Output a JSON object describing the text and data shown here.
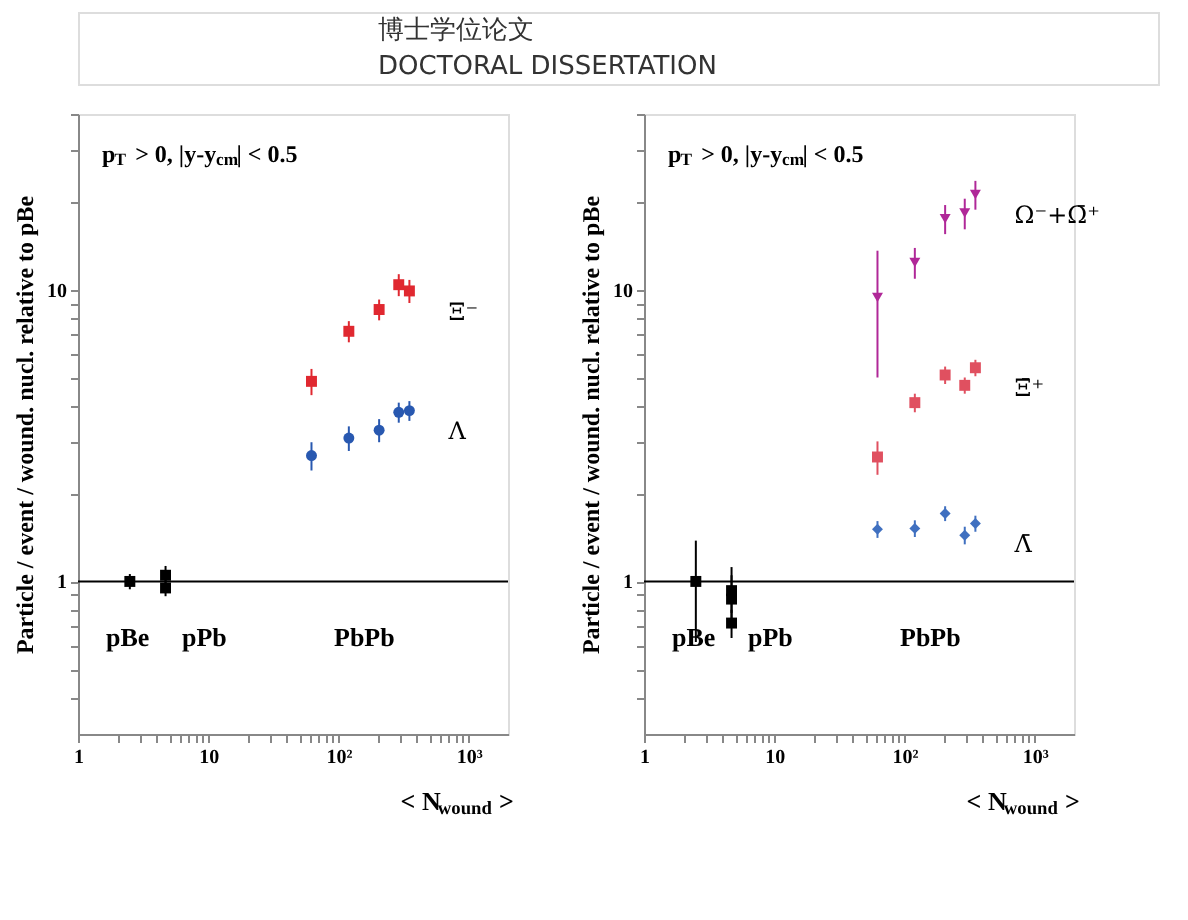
{
  "chart_data": [
    {
      "type": "other",
      "annotations": [
        "博士学位论文",
        "DOCTORAL DISSERTATION"
      ]
    },
    {
      "type": "scatter",
      "ylabel": "Particle / event / wound. nucl. relative to pBe",
      "xlabel": "< N$_{wound}$ >",
      "log": "xy",
      "grid": false,
      "xlim": [
        1,
        2000
      ],
      "ylim": [
        0.3,
        40
      ],
      "xticks": [
        1,
        {
          "value": 2,
          "label": null
        },
        {
          "value": 3,
          "label": null
        },
        {
          "value": 4,
          "label": null
        },
        {
          "value": 5,
          "label": null
        },
        {
          "value": 6,
          "label": null
        },
        {
          "value": 7,
          "label": null
        },
        {
          "value": 8,
          "label": null
        },
        {
          "value": 9,
          "label": null
        },
        10,
        {
          "value": 20,
          "label": null
        },
        {
          "value": 30,
          "label": null
        },
        {
          "value": 40,
          "label": null
        },
        {
          "value": 50,
          "label": null
        },
        {
          "value": 60,
          "label": null
        },
        {
          "value": 70,
          "label": null
        },
        {
          "value": 80,
          "label": null
        },
        {
          "value": 90,
          "label": null
        },
        {
          "value": 100,
          "label": "10²"
        },
        {
          "value": 200,
          "label": null
        },
        {
          "value": 300,
          "label": null
        },
        {
          "value": 400,
          "label": null
        },
        {
          "value": 500,
          "label": null
        },
        {
          "value": 600,
          "label": null
        },
        {
          "value": 700,
          "label": null
        },
        {
          "value": 800,
          "label": null
        },
        {
          "value": 900,
          "label": null
        },
        {
          "value": 1000,
          "label": "10³"
        }
      ],
      "yticks": [
        {
          "value": 0.4,
          "label": null
        },
        {
          "value": 0.5,
          "label": null
        },
        {
          "value": 0.6,
          "label": null
        },
        {
          "value": 0.7,
          "label": null
        },
        {
          "value": 0.8,
          "label": null
        },
        {
          "value": 0.9,
          "label": null
        },
        1,
        {
          "value": 2,
          "label": null
        },
        {
          "value": 3,
          "label": null
        },
        {
          "value": 4,
          "label": null
        },
        {
          "value": 5,
          "label": null
        },
        {
          "value": 6,
          "label": null
        },
        {
          "value": 7,
          "label": null
        },
        {
          "value": 8,
          "label": null
        },
        {
          "value": 9,
          "label": null
        },
        10,
        {
          "value": 20,
          "label": null
        },
        {
          "value": 30,
          "label": null
        },
        {
          "value": 40,
          "label": null
        }
      ],
      "ref_lines": [
        {
          "axis": "y",
          "value": 1,
          "color": "#000000"
        }
      ],
      "annotations": [
        "p$_{T}$ > 0,  |y-y$_{cm}$| < 0.5",
        "pBe",
        "pPb",
        "PbPb"
      ],
      "series": [
        {
          "name": "Ξ⁻",
          "color": "#e02830",
          "marker": "square",
          "x": [
            62,
            120,
            205,
            290,
            350
          ],
          "values": [
            4.85,
            7.2,
            8.55,
            10.4,
            9.9
          ],
          "errors": [
            0.5,
            0.6,
            0.7,
            0.9,
            0.9
          ]
        },
        {
          "name": "Λ",
          "color": "#2858b0",
          "marker": "circle",
          "x": [
            62,
            120,
            205,
            290,
            350
          ],
          "values": [
            2.7,
            3.1,
            3.3,
            3.8,
            3.85
          ],
          "errors": [
            0.3,
            0.3,
            0.3,
            0.3,
            0.3
          ]
        },
        {
          "color": "#000000",
          "marker": "square",
          "x": [
            2.5,
            4.7,
            4.7
          ],
          "values": [
            1.0,
            1.05,
            0.95
          ],
          "errors": [
            0.06,
            0.08,
            0.06
          ]
        }
      ]
    },
    {
      "type": "scatter",
      "ylabel": "Particle / event / wound. nucl. relative to pBe",
      "xlabel": "< N$_{wound}$ >",
      "log": "xy",
      "grid": false,
      "xlim": [
        1,
        2000
      ],
      "ylim": [
        0.3,
        40
      ],
      "xticks": [
        1,
        {
          "value": 2,
          "label": null
        },
        {
          "value": 3,
          "label": null
        },
        {
          "value": 4,
          "label": null
        },
        {
          "value": 5,
          "label": null
        },
        {
          "value": 6,
          "label": null
        },
        {
          "value": 7,
          "label": null
        },
        {
          "value": 8,
          "label": null
        },
        {
          "value": 9,
          "label": null
        },
        10,
        {
          "value": 20,
          "label": null
        },
        {
          "value": 30,
          "label": null
        },
        {
          "value": 40,
          "label": null
        },
        {
          "value": 50,
          "label": null
        },
        {
          "value": 60,
          "label": null
        },
        {
          "value": 70,
          "label": null
        },
        {
          "value": 80,
          "label": null
        },
        {
          "value": 90,
          "label": null
        },
        {
          "value": 100,
          "label": "10²"
        },
        {
          "value": 200,
          "label": null
        },
        {
          "value": 300,
          "label": null
        },
        {
          "value": 400,
          "label": null
        },
        {
          "value": 500,
          "label": null
        },
        {
          "value": 600,
          "label": null
        },
        {
          "value": 700,
          "label": null
        },
        {
          "value": 800,
          "label": null
        },
        {
          "value": 900,
          "label": null
        },
        {
          "value": 1000,
          "label": "10³"
        }
      ],
      "yticks": [
        {
          "value": 0.4,
          "label": null
        },
        {
          "value": 0.5,
          "label": null
        },
        {
          "value": 0.6,
          "label": null
        },
        {
          "value": 0.7,
          "label": null
        },
        {
          "value": 0.8,
          "label": null
        },
        {
          "value": 0.9,
          "label": null
        },
        1,
        {
          "value": 2,
          "label": null
        },
        {
          "value": 3,
          "label": null
        },
        {
          "value": 4,
          "label": null
        },
        {
          "value": 5,
          "label": null
        },
        {
          "value": 6,
          "label": null
        },
        {
          "value": 7,
          "label": null
        },
        {
          "value": 8,
          "label": null
        },
        {
          "value": 9,
          "label": null
        },
        10,
        {
          "value": 20,
          "label": null
        },
        {
          "value": 30,
          "label": null
        },
        {
          "value": 40,
          "label": null
        }
      ],
      "ref_lines": [
        {
          "axis": "y",
          "value": 1,
          "color": "#000000"
        }
      ],
      "annotations": [
        "p$_{T}$ > 0,  |y-y$_{cm}$| < 0.5",
        "pBe",
        "pPb",
        "PbPb"
      ],
      "series": [
        {
          "name": "Ω⁻+Ω̄⁺",
          "color": "#b02898",
          "marker": "triangle",
          "x": [
            62,
            120,
            205,
            290,
            350
          ],
          "values": [
            9.4,
            12.4,
            17.5,
            18.3,
            21.2
          ],
          "errors": [
            [
              5.0,
              13.6
            ],
            1.5,
            2.0,
            2.2,
            2.4
          ]
        },
        {
          "name": "Ξ̄⁺",
          "color": "#e05060",
          "marker": "square",
          "x": [
            62,
            120,
            205,
            290,
            350
          ],
          "values": [
            2.67,
            4.1,
            5.1,
            4.7,
            5.4
          ],
          "errors": [
            0.35,
            0.3,
            0.35,
            0.3,
            0.35
          ]
        },
        {
          "name": "Λ̄",
          "color": "#4070c0",
          "marker": "diamond",
          "x": [
            62,
            120,
            205,
            290,
            350
          ],
          "values": [
            1.51,
            1.52,
            1.71,
            1.44,
            1.58
          ],
          "errors": [
            0.1,
            0.1,
            0.1,
            0.1,
            0.1
          ]
        },
        {
          "color": "#000000",
          "marker": "square",
          "x": [
            2.5,
            4.7,
            4.7,
            4.7
          ],
          "values": [
            1.0,
            0.93,
            0.87,
            0.72
          ],
          "errors": [
            [
              0.62,
              1.38
            ],
            [
              0.78,
              1.12
            ],
            [
              0.7,
              1.05
            ],
            [
              0.64,
              0.8
            ]
          ]
        }
      ]
    }
  ]
}
